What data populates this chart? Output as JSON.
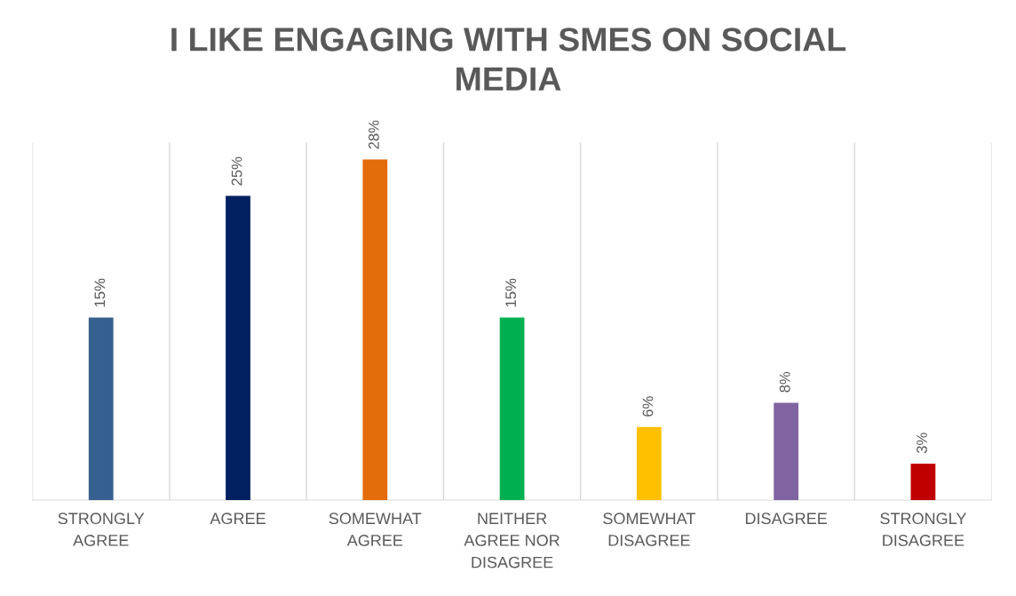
{
  "chart_data": {
    "type": "bar",
    "title": "I LIKE ENGAGING WITH SMES ON SOCIAL MEDIA",
    "categories": [
      "STRONGLY AGREE",
      "AGREE",
      "SOMEWHAT AGREE",
      "NEITHER AGREE NOR DISAGREE",
      "SOMEWHAT DISAGREE",
      "DISAGREE",
      "STRONGLY DISAGREE"
    ],
    "values": [
      15,
      25,
      28,
      15,
      6,
      8,
      3
    ],
    "value_labels": [
      "15%",
      "25%",
      "28%",
      "15%",
      "6%",
      "8%",
      "3%"
    ],
    "colors": [
      "#35608f",
      "#002060",
      "#e46c0a",
      "#00b050",
      "#ffc000",
      "#8064a2",
      "#c00000"
    ],
    "grid": "x",
    "tick_labels": "x"
  }
}
